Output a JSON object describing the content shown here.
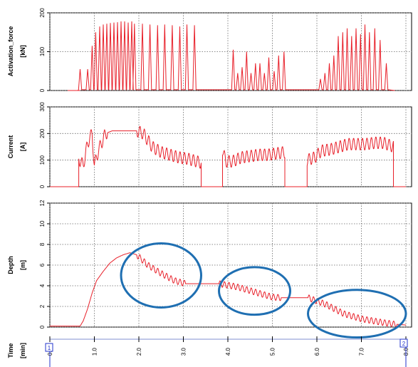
{
  "chart_data": [
    {
      "type": "line",
      "ylabel": "Activation_force",
      "yunit": "[kN]",
      "ylim": [
        0,
        200
      ],
      "yticks": [
        "0",
        "100",
        "200"
      ],
      "grid": true,
      "color": "#e8202a",
      "series": [
        {
          "pulses": [
            [
              0.68,
              55
            ],
            [
              0.85,
              55
            ],
            [
              0.95,
              115
            ],
            [
              1.03,
              150
            ],
            [
              1.12,
              165
            ],
            [
              1.2,
              170
            ],
            [
              1.28,
              172
            ],
            [
              1.36,
              174
            ],
            [
              1.44,
              175
            ],
            [
              1.52,
              176
            ],
            [
              1.6,
              178
            ],
            [
              1.68,
              178
            ],
            [
              1.76,
              175
            ],
            [
              1.84,
              178
            ],
            [
              1.9,
              172
            ],
            [
              2.08,
              172
            ],
            [
              2.25,
              170
            ],
            [
              2.42,
              168
            ],
            [
              2.58,
              170
            ],
            [
              2.75,
              168
            ],
            [
              2.92,
              165
            ],
            [
              3.08,
              170
            ],
            [
              3.25,
              168
            ],
            [
              4.12,
              105
            ],
            [
              4.22,
              45
            ],
            [
              4.32,
              60
            ],
            [
              4.42,
              100
            ],
            [
              4.52,
              45
            ],
            [
              4.62,
              70
            ],
            [
              4.72,
              70
            ],
            [
              4.82,
              45
            ],
            [
              4.92,
              85
            ],
            [
              5.04,
              50
            ],
            [
              5.14,
              90
            ],
            [
              5.26,
              100
            ],
            [
              6.08,
              30
            ],
            [
              6.18,
              45
            ],
            [
              6.28,
              70
            ],
            [
              6.38,
              90
            ],
            [
              6.48,
              140
            ],
            [
              6.58,
              150
            ],
            [
              6.68,
              160
            ],
            [
              6.78,
              140
            ],
            [
              6.88,
              160
            ],
            [
              6.98,
              145
            ],
            [
              7.08,
              170
            ],
            [
              7.18,
              150
            ],
            [
              7.3,
              160
            ],
            [
              7.42,
              130
            ],
            [
              7.56,
              70
            ]
          ]
        }
      ]
    },
    {
      "type": "line",
      "ylabel": "Current",
      "yunit": "[A]",
      "ylim": [
        0,
        300
      ],
      "yticks": [
        "0",
        "100",
        "200",
        "300"
      ],
      "grid": true,
      "color": "#e8202a",
      "series": [
        {
          "segments": [
            [
              [
                0.65,
                0
              ],
              [
                0.65,
                105
              ],
              [
                0.75,
                80
              ],
              [
                0.82,
                140
              ],
              [
                0.9,
                190
              ],
              [
                0.95,
                195
              ],
              [
                1.0,
                80
              ],
              [
                1.1,
                140
              ],
              [
                1.25,
                200
              ],
              [
                1.4,
                210
              ],
              [
                1.6,
                210
              ],
              [
                1.8,
                210
              ],
              [
                1.95,
                210
              ],
              [
                2.1,
                200
              ],
              [
                2.3,
                150
              ],
              [
                2.5,
                130
              ],
              [
                2.7,
                120
              ],
              [
                2.9,
                110
              ],
              [
                3.1,
                105
              ],
              [
                3.3,
                95
              ],
              [
                3.4,
                90
              ],
              [
                3.4,
                0
              ]
            ],
            [
              [
                3.88,
                0
              ],
              [
                3.88,
                140
              ],
              [
                3.95,
                95
              ],
              [
                4.1,
                95
              ],
              [
                4.3,
                110
              ],
              [
                4.5,
                115
              ],
              [
                4.7,
                120
              ],
              [
                4.9,
                120
              ],
              [
                5.1,
                125
              ],
              [
                5.28,
                130
              ],
              [
                5.28,
                0
              ]
            ],
            [
              [
                5.78,
                0
              ],
              [
                5.78,
                100
              ],
              [
                5.95,
                110
              ],
              [
                6.1,
                135
              ],
              [
                6.3,
                140
              ],
              [
                6.5,
                150
              ],
              [
                6.7,
                160
              ],
              [
                6.9,
                160
              ],
              [
                7.1,
                160
              ],
              [
                7.3,
                165
              ],
              [
                7.5,
                165
              ],
              [
                7.72,
                150
              ],
              [
                7.72,
                0
              ]
            ]
          ],
          "oscillation_amplitude_A": 45
        }
      ]
    },
    {
      "type": "line",
      "ylabel": "Depth",
      "yunit": "[m]",
      "ylim": [
        0,
        12
      ],
      "yticks": [
        "0",
        "2",
        "4",
        "6",
        "8",
        "10",
        "12"
      ],
      "grid": true,
      "color": "#e8202a",
      "series": [
        {
          "trend": [
            [
              0.0,
              0.1
            ],
            [
              0.68,
              0.1
            ],
            [
              0.75,
              0.6
            ],
            [
              0.85,
              1.8
            ],
            [
              0.95,
              3.3
            ],
            [
              1.05,
              4.5
            ],
            [
              1.2,
              5.4
            ],
            [
              1.35,
              6.2
            ],
            [
              1.5,
              6.7
            ],
            [
              1.65,
              7.0
            ],
            [
              1.8,
              7.2
            ],
            [
              1.95,
              7.0
            ],
            [
              2.2,
              6.0
            ],
            [
              2.5,
              5.2
            ],
            [
              2.8,
              4.5
            ],
            [
              3.05,
              4.2
            ],
            [
              3.8,
              4.2
            ],
            [
              4.2,
              3.9
            ],
            [
              4.6,
              3.4
            ],
            [
              5.0,
              2.9
            ],
            [
              5.2,
              2.85
            ],
            [
              5.5,
              2.85
            ],
            [
              5.8,
              2.85
            ],
            [
              6.2,
              2.2
            ],
            [
              6.6,
              1.3
            ],
            [
              7.0,
              0.8
            ],
            [
              7.4,
              0.5
            ],
            [
              7.7,
              0.3
            ],
            [
              8.0,
              0.2
            ]
          ],
          "oscillating_ranges_min": [
            [
              1.95,
              3.05
            ],
            [
              3.8,
              5.2
            ],
            [
              5.8,
              7.8
            ]
          ],
          "oscillation_amplitude_m": 0.6
        }
      ],
      "annotations": [
        {
          "type": "ellipse",
          "color": "#1f6fb2",
          "x_center": 2.5,
          "y_center": 5.0,
          "x_radius": 0.9,
          "y_radius": 3.1
        },
        {
          "type": "ellipse",
          "color": "#1f6fb2",
          "x_center": 4.6,
          "y_center": 3.5,
          "x_radius": 0.8,
          "y_radius": 2.3
        },
        {
          "type": "ellipse",
          "color": "#1f6fb2",
          "x_center": 6.9,
          "y_center": 1.3,
          "x_radius": 1.1,
          "y_radius": 2.3
        }
      ]
    },
    {
      "type": "line",
      "xlabel": "Time",
      "xunit": "[min]",
      "xlim": [
        0,
        8
      ],
      "xticks": [
        "0.0",
        "1.0",
        "2.0",
        "3.0",
        "4.0",
        "5.0",
        "6.0",
        "7.0",
        "8.0"
      ],
      "markers": [
        {
          "label": "1",
          "x": 0.0
        },
        {
          "label": "2",
          "x": 8.0
        }
      ]
    }
  ]
}
